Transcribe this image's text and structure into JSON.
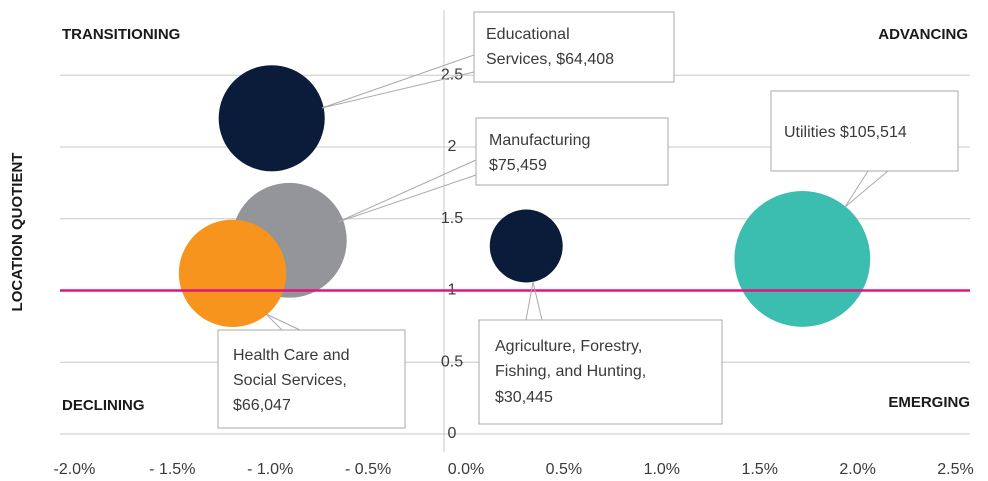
{
  "chart_data": {
    "type": "bubble",
    "y_label": "LOCATION QUOTIENT",
    "quadrant_labels": [
      "TRANSITIONING",
      "ADVANCING",
      "DECLINING",
      "EMERGING"
    ],
    "labels": [
      [
        "Educational",
        "Services, $64,408"
      ],
      [
        "Manufacturing",
        "$75,459"
      ],
      [
        "Health Care and",
        "Social Services,",
        "$66,047"
      ],
      [
        "Agriculture, Forestry,",
        "Fishing, and Hunting,",
        "$30,445"
      ],
      [
        "Utilities $105,514"
      ]
    ],
    "x": [
      -0.88,
      -0.79,
      -1.08,
      0.42,
      1.83
    ],
    "values": [
      2.2,
      1.35,
      1.12,
      1.31,
      1.22
    ],
    "sizes": [
      64408,
      75459,
      66047,
      30445,
      105514
    ],
    "colors": [
      "#0b1c3a",
      "#939598",
      "#f7941d",
      "#0b1c3a",
      "#3bbdb0"
    ],
    "xlim": [
      -2,
      2.5
    ],
    "xticks": [
      {
        "value": -2,
        "label": "-2.0%"
      },
      {
        "value": -1.5,
        "label": "- 1.5%"
      },
      {
        "value": -1,
        "label": "- 1.0%"
      },
      {
        "value": -0.5,
        "label": "- 0.5%"
      },
      {
        "value": 0,
        "label": "0.0%"
      },
      {
        "value": 0.5,
        "label": "0.5%"
      },
      {
        "value": 1,
        "label": "1.0%"
      },
      {
        "value": 1.5,
        "label": "1.5%"
      },
      {
        "value": 2,
        "label": "2.0%"
      },
      {
        "value": 2.5,
        "label": "2.5%"
      }
    ],
    "ylim": [
      0,
      3
    ],
    "yticks": [
      0,
      0.5,
      1,
      1.5,
      2,
      2.5
    ],
    "reference_line": 1,
    "reference_color": "#e3137f",
    "grid": true
  }
}
